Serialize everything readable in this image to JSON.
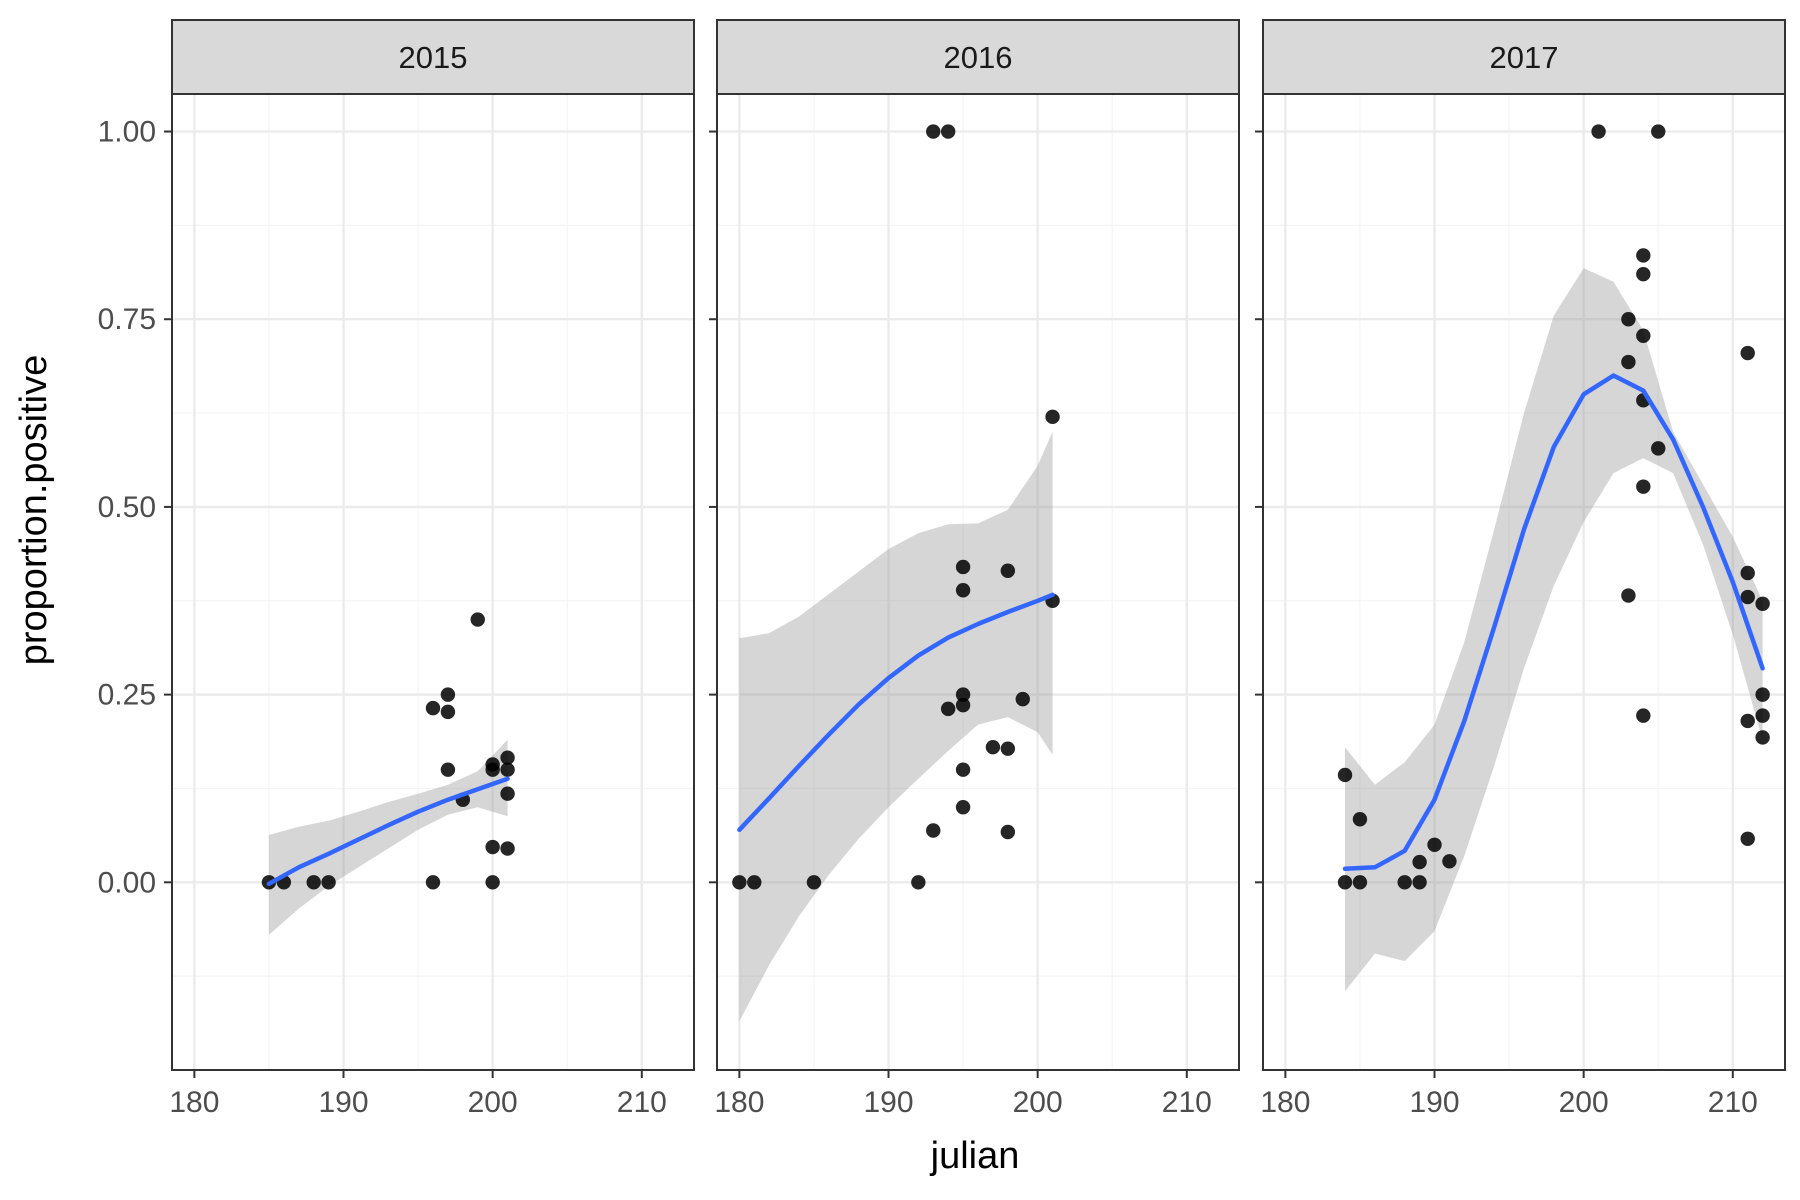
{
  "chart_data": {
    "type": "scatter",
    "facet_by": "year",
    "xlabel": "julian",
    "ylabel": "proportion.positive",
    "xlim": [
      178.5,
      213.5
    ],
    "ylim": [
      -0.25,
      1.05
    ],
    "x_ticks": [
      180,
      190,
      200,
      210
    ],
    "y_ticks": [
      0.0,
      0.25,
      0.5,
      0.75,
      1.0
    ],
    "y_tick_labels": [
      "0.00",
      "0.25",
      "0.50",
      "0.75",
      "1.00"
    ],
    "x_tick_labels": [
      "180",
      "190",
      "200",
      "210"
    ],
    "grid": true,
    "colors": {
      "points": "#000000",
      "smooth_line": "#3366FF",
      "confidence_band": "#999999",
      "strip_background": "#D9D9D9",
      "grid": "#EBEBEB",
      "panel_border": "#333333"
    },
    "panels": [
      {
        "label": "2015",
        "points": [
          [
            185,
            0
          ],
          [
            186,
            0
          ],
          [
            188,
            0
          ],
          [
            189,
            0
          ],
          [
            196,
            0
          ],
          [
            196,
            0.232
          ],
          [
            197,
            0.25
          ],
          [
            197,
            0.227
          ],
          [
            197,
            0.15
          ],
          [
            198,
            0.11
          ],
          [
            199,
            0.35
          ],
          [
            200,
            0.157
          ],
          [
            200,
            0.15
          ],
          [
            200,
            0.047
          ],
          [
            200,
            0
          ],
          [
            201,
            0.166
          ],
          [
            201,
            0.15
          ],
          [
            201,
            0.118
          ],
          [
            201,
            0.045
          ]
        ],
        "smooth": [
          [
            185,
            -0.002
          ],
          [
            187,
            0.02
          ],
          [
            189,
            0.038
          ],
          [
            191,
            0.057
          ],
          [
            193,
            0.076
          ],
          [
            195,
            0.094
          ],
          [
            197,
            0.11
          ],
          [
            199,
            0.124
          ],
          [
            201,
            0.138
          ]
        ],
        "band_lower": [
          -0.07,
          -0.035,
          -0.005,
          0.02,
          0.045,
          0.07,
          0.09,
          0.1,
          0.088
        ],
        "band_upper": [
          0.063,
          0.074,
          0.082,
          0.094,
          0.107,
          0.118,
          0.13,
          0.148,
          0.19
        ]
      },
      {
        "label": "2016",
        "points": [
          [
            180,
            0
          ],
          [
            181,
            0
          ],
          [
            185,
            0
          ],
          [
            192,
            0
          ],
          [
            193,
            1
          ],
          [
            194,
            1
          ],
          [
            193,
            0.069
          ],
          [
            194,
            0.231
          ],
          [
            195,
            0.42
          ],
          [
            195,
            0.389
          ],
          [
            195,
            0.25
          ],
          [
            195,
            0.236
          ],
          [
            195,
            0.15
          ],
          [
            195,
            0.1
          ],
          [
            197,
            0.18
          ],
          [
            198,
            0.415
          ],
          [
            198,
            0.178
          ],
          [
            198,
            0.067
          ],
          [
            199,
            0.244
          ],
          [
            201,
            0.62
          ],
          [
            201,
            0.375
          ]
        ],
        "smooth": [
          [
            180,
            0.07
          ],
          [
            182,
            0.112
          ],
          [
            184,
            0.155
          ],
          [
            186,
            0.197
          ],
          [
            188,
            0.237
          ],
          [
            190,
            0.272
          ],
          [
            192,
            0.302
          ],
          [
            194,
            0.326
          ],
          [
            196,
            0.344
          ],
          [
            198,
            0.36
          ],
          [
            200,
            0.375
          ],
          [
            201,
            0.383
          ]
        ],
        "band_lower": [
          -0.185,
          -0.11,
          -0.045,
          0.01,
          0.058,
          0.1,
          0.138,
          0.175,
          0.21,
          0.22,
          0.2,
          0.17
        ],
        "band_upper": [
          0.325,
          0.332,
          0.354,
          0.384,
          0.414,
          0.444,
          0.465,
          0.477,
          0.478,
          0.496,
          0.555,
          0.6
        ]
      },
      {
        "label": "2017",
        "points": [
          [
            184,
            0.143
          ],
          [
            184,
            0
          ],
          [
            185,
            0.084
          ],
          [
            185,
            0
          ],
          [
            188,
            0
          ],
          [
            189,
            0.027
          ],
          [
            189,
            0
          ],
          [
            190,
            0.05
          ],
          [
            191,
            0.028
          ],
          [
            201,
            1
          ],
          [
            203,
            0.75
          ],
          [
            203,
            0.693
          ],
          [
            203,
            0.382
          ],
          [
            204,
            0.835
          ],
          [
            204,
            0.81
          ],
          [
            204,
            0.728
          ],
          [
            204,
            0.642
          ],
          [
            204,
            0.527
          ],
          [
            204,
            0.222
          ],
          [
            205,
            1
          ],
          [
            205,
            0.578
          ],
          [
            211,
            0.705
          ],
          [
            211,
            0.412
          ],
          [
            211,
            0.38
          ],
          [
            211,
            0.215
          ],
          [
            211,
            0.058
          ],
          [
            212,
            0.371
          ],
          [
            212,
            0.25
          ],
          [
            212,
            0.222
          ],
          [
            212,
            0.193
          ]
        ],
        "smooth": [
          [
            184,
            0.018
          ],
          [
            186,
            0.02
          ],
          [
            188,
            0.042
          ],
          [
            190,
            0.11
          ],
          [
            192,
            0.215
          ],
          [
            194,
            0.34
          ],
          [
            196,
            0.47
          ],
          [
            198,
            0.58
          ],
          [
            200,
            0.65
          ],
          [
            202,
            0.675
          ],
          [
            204,
            0.655
          ],
          [
            206,
            0.59
          ],
          [
            208,
            0.5
          ],
          [
            210,
            0.4
          ],
          [
            212,
            0.285
          ]
        ],
        "band_lower": [
          -0.145,
          -0.095,
          -0.105,
          -0.065,
          0.035,
          0.155,
          0.285,
          0.395,
          0.48,
          0.545,
          0.565,
          0.545,
          0.45,
          0.33,
          0.19
        ],
        "band_upper": [
          0.18,
          0.13,
          0.16,
          0.21,
          0.32,
          0.47,
          0.625,
          0.755,
          0.818,
          0.8,
          0.735,
          0.6,
          0.53,
          0.46,
          0.375
        ]
      }
    ]
  }
}
